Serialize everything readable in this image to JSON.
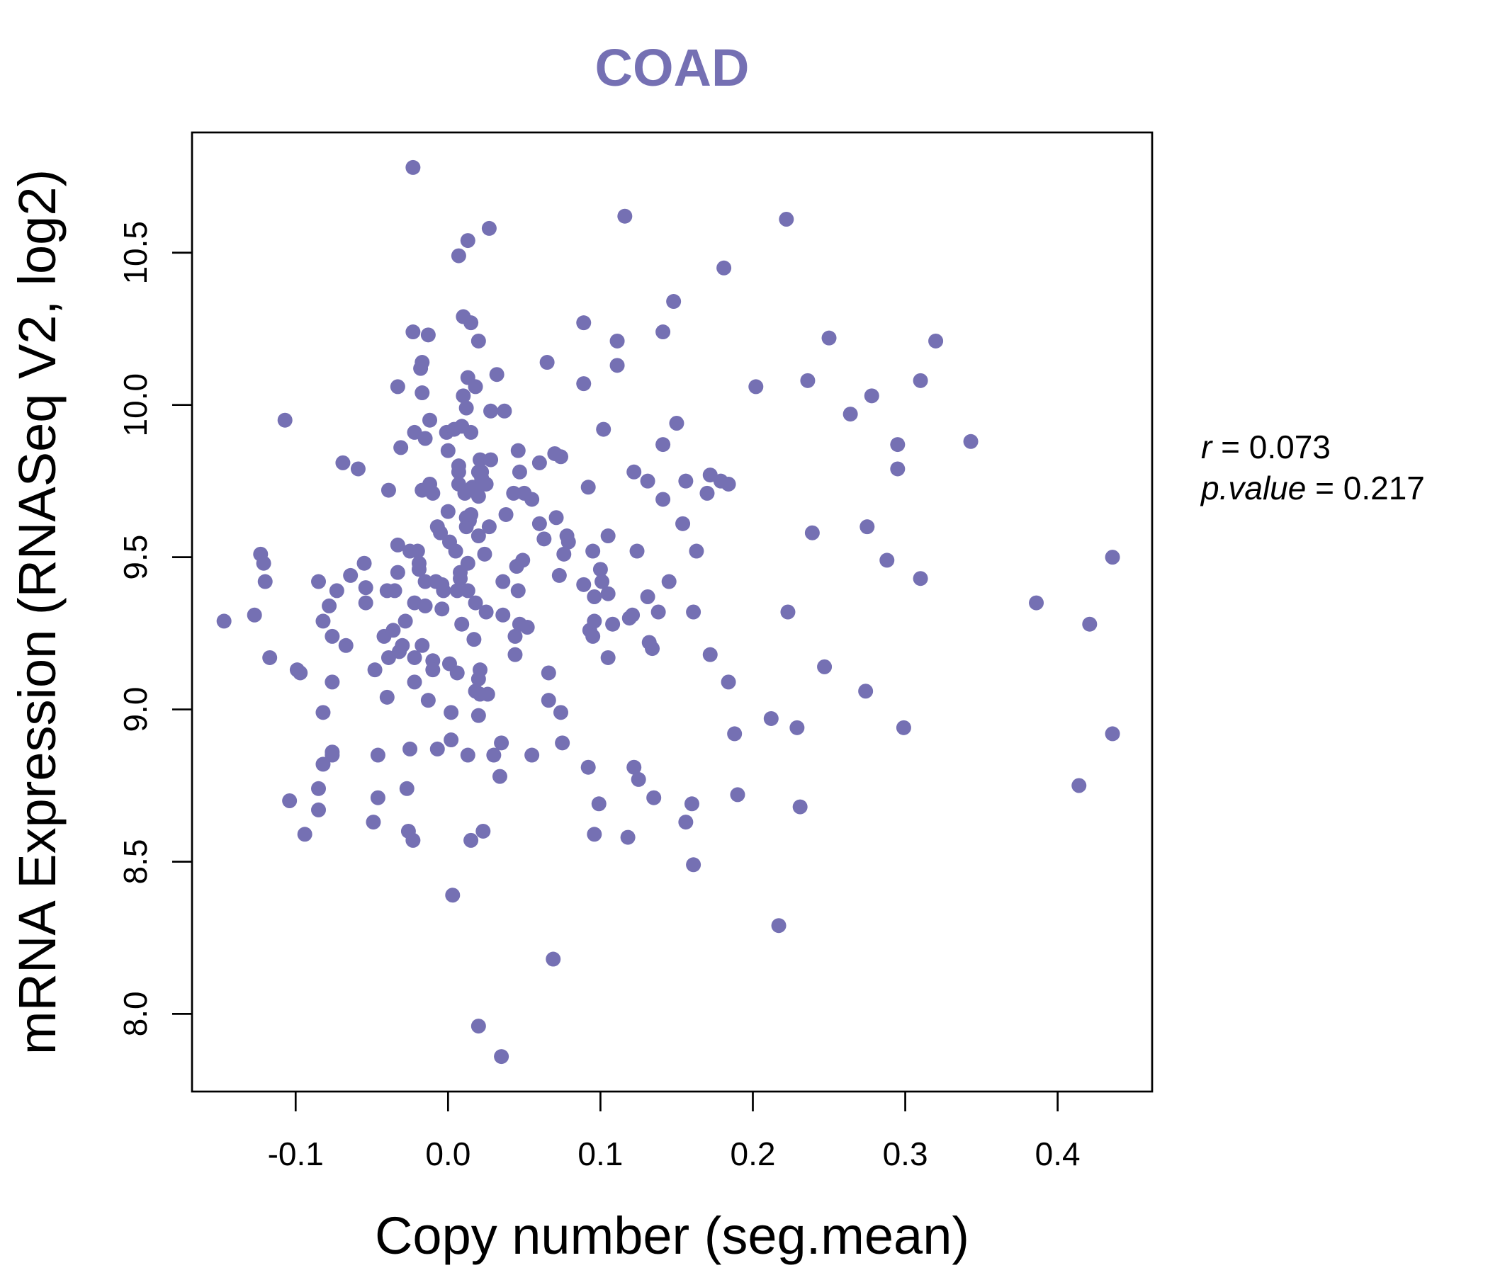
{
  "chart_data": {
    "type": "scatter",
    "title": "COAD",
    "xlabel": "Copy number (seg.mean)",
    "ylabel": "mRNA Expression (RNASeq V2, log2)",
    "xlim": [
      -0.168,
      0.462
    ],
    "ylim": [
      7.745,
      10.895
    ],
    "xticks": [
      -0.1,
      0.0,
      0.1,
      0.2,
      0.3,
      0.4
    ],
    "xtick_labels": [
      "-0.1",
      "0.0",
      "0.1",
      "0.2",
      "0.3",
      "0.4"
    ],
    "yticks": [
      8.0,
      8.5,
      9.0,
      9.5,
      10.0,
      10.5
    ],
    "ytick_labels": [
      "8.0",
      "8.5",
      "9.0",
      "9.5",
      "10.0",
      "10.5"
    ],
    "grid": false,
    "legend": "none",
    "point_color": "#7570b3",
    "stats": {
      "r_label": "r",
      "r_value": "0.073",
      "p_label": "p.value",
      "p_value": "0.217"
    },
    "series": [
      {
        "points": [
          [
            -0.147,
            9.29
          ],
          [
            -0.127,
            9.31
          ],
          [
            -0.123,
            9.51
          ],
          [
            -0.121,
            9.48
          ],
          [
            -0.12,
            9.42
          ],
          [
            -0.117,
            9.17
          ],
          [
            -0.107,
            9.95
          ],
          [
            -0.104,
            8.7
          ],
          [
            -0.099,
            9.13
          ],
          [
            -0.097,
            9.12
          ],
          [
            -0.094,
            8.59
          ],
          [
            -0.085,
            9.42
          ],
          [
            -0.085,
            8.74
          ],
          [
            -0.085,
            8.67
          ],
          [
            -0.082,
            9.29
          ],
          [
            -0.082,
            8.99
          ],
          [
            -0.082,
            8.82
          ],
          [
            -0.078,
            9.34
          ],
          [
            -0.076,
            9.09
          ],
          [
            -0.076,
            9.24
          ],
          [
            -0.076,
            8.86
          ],
          [
            -0.076,
            8.85
          ],
          [
            -0.073,
            9.39
          ],
          [
            -0.069,
            9.81
          ],
          [
            -0.067,
            9.21
          ],
          [
            -0.064,
            9.44
          ],
          [
            -0.059,
            9.79
          ],
          [
            -0.055,
            9.48
          ],
          [
            -0.054,
            9.4
          ],
          [
            -0.054,
            9.35
          ],
          [
            -0.049,
            8.63
          ],
          [
            -0.048,
            9.13
          ],
          [
            -0.046,
            8.85
          ],
          [
            -0.046,
            8.71
          ],
          [
            -0.042,
            9.24
          ],
          [
            -0.04,
            9.39
          ],
          [
            -0.04,
            9.04
          ],
          [
            -0.039,
            9.72
          ],
          [
            -0.039,
            9.17
          ],
          [
            -0.036,
            9.26
          ],
          [
            -0.035,
            9.39
          ],
          [
            -0.033,
            10.06
          ],
          [
            -0.033,
            9.54
          ],
          [
            -0.033,
            9.45
          ],
          [
            -0.032,
            9.19
          ],
          [
            -0.031,
            9.86
          ],
          [
            -0.03,
            9.21
          ],
          [
            -0.028,
            9.29
          ],
          [
            -0.027,
            8.74
          ],
          [
            -0.026,
            8.6
          ],
          [
            -0.025,
            9.52
          ],
          [
            -0.025,
            8.87
          ],
          [
            -0.023,
            10.78
          ],
          [
            -0.023,
            10.24
          ],
          [
            -0.023,
            8.57
          ],
          [
            -0.022,
            9.91
          ],
          [
            -0.022,
            9.35
          ],
          [
            -0.022,
            9.09
          ],
          [
            -0.022,
            9.17
          ],
          [
            -0.02,
            9.52
          ],
          [
            -0.019,
            9.48
          ],
          [
            -0.019,
            9.46
          ],
          [
            -0.018,
            10.12
          ],
          [
            -0.017,
            10.14
          ],
          [
            -0.017,
            10.04
          ],
          [
            -0.017,
            9.72
          ],
          [
            -0.017,
            9.21
          ],
          [
            -0.015,
            9.89
          ],
          [
            -0.015,
            9.34
          ],
          [
            -0.015,
            9.42
          ],
          [
            -0.013,
            10.23
          ],
          [
            -0.013,
            9.03
          ],
          [
            -0.012,
            9.95
          ],
          [
            -0.012,
            9.74
          ],
          [
            -0.01,
            9.71
          ],
          [
            -0.01,
            9.16
          ],
          [
            -0.01,
            9.13
          ],
          [
            -0.008,
            9.42
          ],
          [
            -0.007,
            9.6
          ],
          [
            -0.007,
            8.87
          ],
          [
            -0.005,
            9.58
          ],
          [
            -0.004,
            9.33
          ],
          [
            -0.004,
            9.41
          ],
          [
            -0.003,
            9.39
          ],
          [
            -0.001,
            9.91
          ],
          [
            0.0,
            9.65
          ],
          [
            0.0,
            9.85
          ],
          [
            0.001,
            9.55
          ],
          [
            0.001,
            9.15
          ],
          [
            0.002,
            8.99
          ],
          [
            0.002,
            8.9
          ],
          [
            0.003,
            8.39
          ],
          [
            0.004,
            9.92
          ],
          [
            0.005,
            9.52
          ],
          [
            0.006,
            9.39
          ],
          [
            0.006,
            9.12
          ],
          [
            0.007,
            10.49
          ],
          [
            0.007,
            9.78
          ],
          [
            0.007,
            9.8
          ],
          [
            0.007,
            9.74
          ],
          [
            0.008,
            9.45
          ],
          [
            0.008,
            9.43
          ],
          [
            0.009,
            9.28
          ],
          [
            0.009,
            9.93
          ],
          [
            0.01,
            10.29
          ],
          [
            0.01,
            10.03
          ],
          [
            0.011,
            9.71
          ],
          [
            0.012,
            9.6
          ],
          [
            0.012,
            9.99
          ],
          [
            0.012,
            9.63
          ],
          [
            0.013,
            10.54
          ],
          [
            0.013,
            10.09
          ],
          [
            0.013,
            9.48
          ],
          [
            0.013,
            9.39
          ],
          [
            0.013,
            8.85
          ],
          [
            0.014,
            9.62
          ],
          [
            0.015,
            10.27
          ],
          [
            0.015,
            9.91
          ],
          [
            0.015,
            9.64
          ],
          [
            0.015,
            8.57
          ],
          [
            0.016,
            9.73
          ],
          [
            0.017,
            9.23
          ],
          [
            0.018,
            10.06
          ],
          [
            0.018,
            9.35
          ],
          [
            0.018,
            9.06
          ],
          [
            0.019,
            9.72
          ],
          [
            0.02,
            10.21
          ],
          [
            0.02,
            9.78
          ],
          [
            0.02,
            9.7
          ],
          [
            0.02,
            9.57
          ],
          [
            0.02,
            9.1
          ],
          [
            0.02,
            8.98
          ],
          [
            0.02,
            7.96
          ],
          [
            0.021,
            9.13
          ],
          [
            0.021,
            9.82
          ],
          [
            0.021,
            9.05
          ],
          [
            0.022,
            9.78
          ],
          [
            0.022,
            9.76
          ],
          [
            0.023,
            8.6
          ],
          [
            0.024,
            9.51
          ],
          [
            0.025,
            9.32
          ],
          [
            0.025,
            9.74
          ],
          [
            0.026,
            9.05
          ],
          [
            0.027,
            9.6
          ],
          [
            0.027,
            10.58
          ],
          [
            0.028,
            9.98
          ],
          [
            0.028,
            9.82
          ],
          [
            0.03,
            8.85
          ],
          [
            0.032,
            10.1
          ],
          [
            0.034,
            8.78
          ],
          [
            0.035,
            8.89
          ],
          [
            0.035,
            7.86
          ],
          [
            0.036,
            9.42
          ],
          [
            0.036,
            9.31
          ],
          [
            0.037,
            9.98
          ],
          [
            0.038,
            9.64
          ],
          [
            0.043,
            9.71
          ],
          [
            0.044,
            9.24
          ],
          [
            0.044,
            9.18
          ],
          [
            0.045,
            9.47
          ],
          [
            0.046,
            9.39
          ],
          [
            0.046,
            9.85
          ],
          [
            0.047,
            9.78
          ],
          [
            0.047,
            9.28
          ],
          [
            0.049,
            9.49
          ],
          [
            0.05,
            9.71
          ],
          [
            0.052,
            9.27
          ],
          [
            0.055,
            9.69
          ],
          [
            0.055,
            8.85
          ],
          [
            0.06,
            9.61
          ],
          [
            0.06,
            9.81
          ],
          [
            0.063,
            9.56
          ],
          [
            0.065,
            10.14
          ],
          [
            0.066,
            9.12
          ],
          [
            0.066,
            9.03
          ],
          [
            0.069,
            8.18
          ],
          [
            0.07,
            9.84
          ],
          [
            0.071,
            9.63
          ],
          [
            0.073,
            9.44
          ],
          [
            0.074,
            9.83
          ],
          [
            0.074,
            8.99
          ],
          [
            0.075,
            8.89
          ],
          [
            0.076,
            9.51
          ],
          [
            0.078,
            9.57
          ],
          [
            0.079,
            9.55
          ],
          [
            0.089,
            10.27
          ],
          [
            0.089,
            9.41
          ],
          [
            0.089,
            10.07
          ],
          [
            0.092,
            9.73
          ],
          [
            0.092,
            8.81
          ],
          [
            0.093,
            9.26
          ],
          [
            0.095,
            9.52
          ],
          [
            0.095,
            9.24
          ],
          [
            0.096,
            9.37
          ],
          [
            0.096,
            8.59
          ],
          [
            0.096,
            9.29
          ],
          [
            0.099,
            8.69
          ],
          [
            0.1,
            9.46
          ],
          [
            0.101,
            9.42
          ],
          [
            0.102,
            9.92
          ],
          [
            0.105,
            9.57
          ],
          [
            0.105,
            9.38
          ],
          [
            0.105,
            9.17
          ],
          [
            0.108,
            9.28
          ],
          [
            0.111,
            10.21
          ],
          [
            0.111,
            10.13
          ],
          [
            0.116,
            10.62
          ],
          [
            0.118,
            8.58
          ],
          [
            0.119,
            9.3
          ],
          [
            0.121,
            9.31
          ],
          [
            0.122,
            9.78
          ],
          [
            0.122,
            8.81
          ],
          [
            0.124,
            9.52
          ],
          [
            0.125,
            8.77
          ],
          [
            0.131,
            9.75
          ],
          [
            0.131,
            9.37
          ],
          [
            0.132,
            9.22
          ],
          [
            0.134,
            9.2
          ],
          [
            0.135,
            8.71
          ],
          [
            0.138,
            9.32
          ],
          [
            0.141,
            9.87
          ],
          [
            0.141,
            9.69
          ],
          [
            0.141,
            10.24
          ],
          [
            0.145,
            9.42
          ],
          [
            0.148,
            10.34
          ],
          [
            0.15,
            9.94
          ],
          [
            0.154,
            9.61
          ],
          [
            0.156,
            9.75
          ],
          [
            0.156,
            8.63
          ],
          [
            0.16,
            8.69
          ],
          [
            0.161,
            9.32
          ],
          [
            0.161,
            8.49
          ],
          [
            0.163,
            9.52
          ],
          [
            0.17,
            9.71
          ],
          [
            0.172,
            9.77
          ],
          [
            0.172,
            9.18
          ],
          [
            0.179,
            9.75
          ],
          [
            0.181,
            10.45
          ],
          [
            0.184,
            9.74
          ],
          [
            0.184,
            9.09
          ],
          [
            0.188,
            8.92
          ],
          [
            0.19,
            8.72
          ],
          [
            0.202,
            10.06
          ],
          [
            0.212,
            8.97
          ],
          [
            0.217,
            8.29
          ],
          [
            0.222,
            10.61
          ],
          [
            0.223,
            9.32
          ],
          [
            0.229,
            8.94
          ],
          [
            0.231,
            8.68
          ],
          [
            0.236,
            10.08
          ],
          [
            0.239,
            9.58
          ],
          [
            0.247,
            9.14
          ],
          [
            0.25,
            10.22
          ],
          [
            0.264,
            9.97
          ],
          [
            0.274,
            9.06
          ],
          [
            0.275,
            9.6
          ],
          [
            0.278,
            10.03
          ],
          [
            0.288,
            9.49
          ],
          [
            0.295,
            9.87
          ],
          [
            0.295,
            9.79
          ],
          [
            0.299,
            8.94
          ],
          [
            0.31,
            10.08
          ],
          [
            0.31,
            9.43
          ],
          [
            0.32,
            10.21
          ],
          [
            0.343,
            9.88
          ],
          [
            0.386,
            9.35
          ],
          [
            0.414,
            8.75
          ],
          [
            0.421,
            9.28
          ],
          [
            0.436,
            9.5
          ],
          [
            0.436,
            8.92
          ]
        ]
      }
    ]
  }
}
